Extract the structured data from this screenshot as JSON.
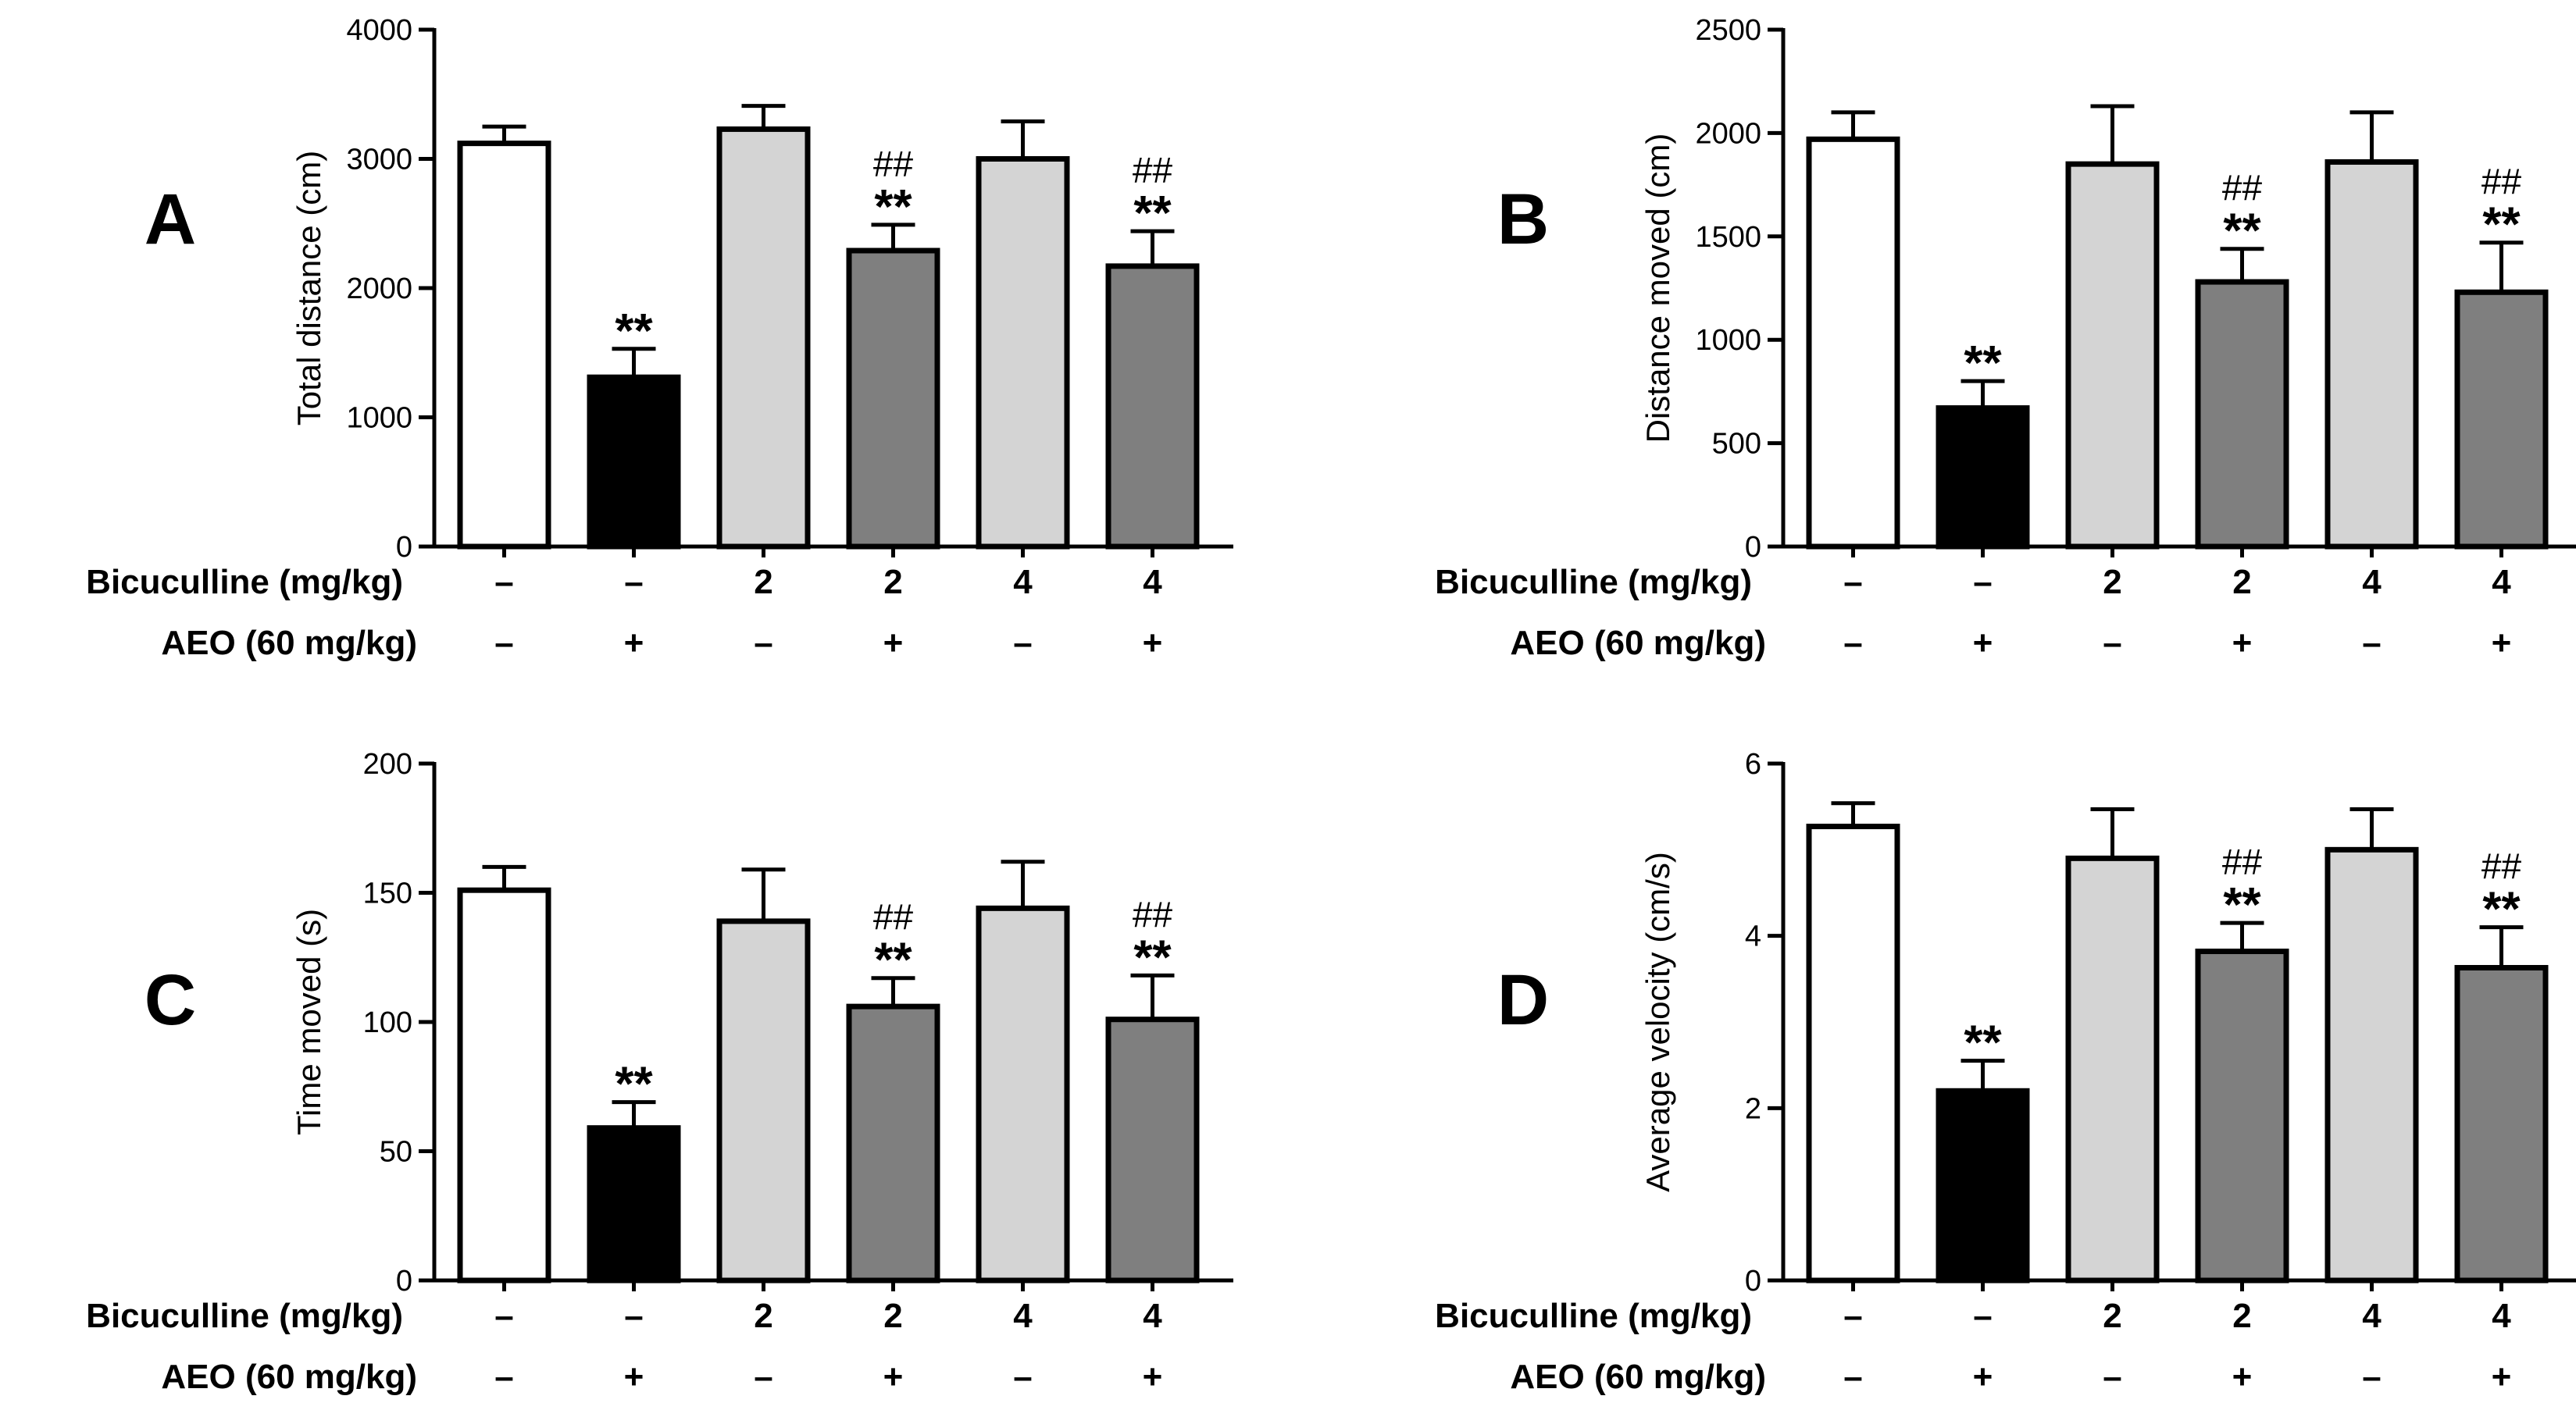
{
  "row_labels": {
    "bicuculline": "Bicuculline (mg/kg)",
    "aeo": "AEO (60 mg/kg)"
  },
  "bicuculline_values": [
    "–",
    "–",
    "2",
    "2",
    "4",
    "4"
  ],
  "aeo_values": [
    "–",
    "+",
    "–",
    "+",
    "–",
    "+"
  ],
  "colors": {
    "group1": "#ffffff",
    "group2": "#000000",
    "group3": "#d4d4d4",
    "group4": "#7f7f7f",
    "group5": "#d4d4d4",
    "group6": "#7f7f7f",
    "stroke": "#000000"
  },
  "chart_data": [
    {
      "type": "bar",
      "panel": "A",
      "ylabel": "Total distance (cm)",
      "ylim": [
        0,
        4000
      ],
      "yticks": [
        0,
        1000,
        2000,
        3000,
        4000
      ],
      "values": [
        3120,
        1310,
        3230,
        2290,
        3000,
        2170
      ],
      "errors": [
        130,
        220,
        180,
        200,
        290,
        270
      ],
      "stars": [
        "",
        "**",
        "",
        "**",
        "",
        "**"
      ],
      "hashes": [
        "",
        "",
        "",
        "##",
        "",
        "##"
      ]
    },
    {
      "type": "bar",
      "panel": "B",
      "ylabel": "Distance moved (cm)",
      "ylim": [
        0,
        2500
      ],
      "yticks": [
        0,
        500,
        1000,
        1500,
        2000,
        2500
      ],
      "values": [
        1970,
        670,
        1850,
        1280,
        1860,
        1230
      ],
      "errors": [
        130,
        130,
        280,
        160,
        240,
        240
      ],
      "stars": [
        "",
        "**",
        "",
        "**",
        "",
        "**"
      ],
      "hashes": [
        "",
        "",
        "",
        "##",
        "",
        "##"
      ]
    },
    {
      "type": "bar",
      "panel": "C",
      "ylabel": "Time moved (s)",
      "ylim": [
        0,
        200
      ],
      "yticks": [
        0,
        50,
        100,
        150,
        200
      ],
      "values": [
        151,
        59,
        139,
        106,
        144,
        101
      ],
      "errors": [
        9,
        10,
        20,
        11,
        18,
        17
      ],
      "stars": [
        "",
        "**",
        "",
        "**",
        "",
        "**"
      ],
      "hashes": [
        "",
        "",
        "",
        "##",
        "",
        "##"
      ]
    },
    {
      "type": "bar",
      "panel": "D",
      "ylabel": "Average velocity (cm/s)",
      "ylim": [
        0,
        6
      ],
      "yticks": [
        0,
        2,
        4,
        6
      ],
      "values": [
        5.27,
        2.2,
        4.9,
        3.82,
        5.0,
        3.63
      ],
      "errors": [
        0.27,
        0.35,
        0.57,
        0.33,
        0.47,
        0.47
      ],
      "stars": [
        "",
        "**",
        "",
        "**",
        "",
        "**"
      ],
      "hashes": [
        "",
        "",
        "",
        "##",
        "",
        "##"
      ]
    }
  ]
}
